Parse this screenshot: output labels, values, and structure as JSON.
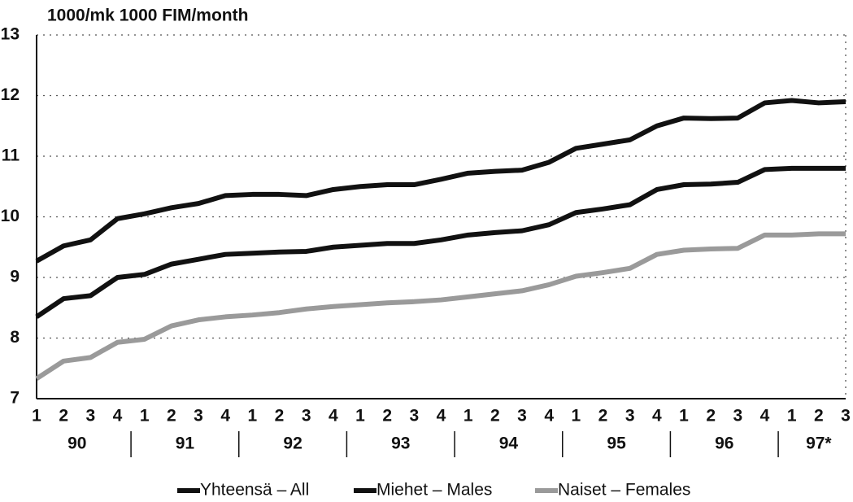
{
  "chart_data": {
    "type": "line",
    "title": "1000/mk  1000 FIM/month",
    "categories": [
      "1",
      "2",
      "3",
      "4",
      "1",
      "2",
      "3",
      "4",
      "1",
      "2",
      "3",
      "4",
      "1",
      "2",
      "3",
      "4",
      "1",
      "2",
      "3",
      "4",
      "1",
      "2",
      "3",
      "4",
      "1",
      "2",
      "3",
      "4",
      "1",
      "2",
      "3"
    ],
    "groups": [
      "90",
      "91",
      "92",
      "93",
      "94",
      "95",
      "96",
      "97*"
    ],
    "series": [
      {
        "name": "Yhteensä – All",
        "color": "#111111",
        "values": [
          8.35,
          8.65,
          8.7,
          9.0,
          9.05,
          9.22,
          9.3,
          9.38,
          9.4,
          9.42,
          9.43,
          9.5,
          9.53,
          9.56,
          9.56,
          9.62,
          9.7,
          9.74,
          9.77,
          9.87,
          10.07,
          10.13,
          10.2,
          10.45,
          10.53,
          10.54,
          10.57,
          10.78,
          10.8,
          10.8,
          10.8
        ]
      },
      {
        "name": "Miehet – Males",
        "color": "#111111",
        "values": [
          9.27,
          9.52,
          9.62,
          9.97,
          10.05,
          10.15,
          10.22,
          10.35,
          10.37,
          10.37,
          10.35,
          10.45,
          10.5,
          10.53,
          10.53,
          10.62,
          10.72,
          10.75,
          10.77,
          10.9,
          11.13,
          11.2,
          11.27,
          11.5,
          11.63,
          11.62,
          11.63,
          11.88,
          11.92,
          11.88,
          11.9
        ]
      },
      {
        "name": "Naiset – Females",
        "color": "#9a9a9a",
        "values": [
          7.33,
          7.62,
          7.68,
          7.93,
          7.98,
          8.2,
          8.3,
          8.35,
          8.38,
          8.42,
          8.48,
          8.52,
          8.55,
          8.58,
          8.6,
          8.63,
          8.68,
          8.73,
          8.78,
          8.88,
          9.02,
          9.08,
          9.15,
          9.38,
          9.45,
          9.47,
          9.48,
          9.7,
          9.7,
          9.72,
          9.72
        ]
      }
    ],
    "ylim": [
      7,
      13
    ],
    "yticks": [
      7,
      8,
      9,
      10,
      11,
      12,
      13
    ],
    "grid": true,
    "legend": "bottom"
  }
}
